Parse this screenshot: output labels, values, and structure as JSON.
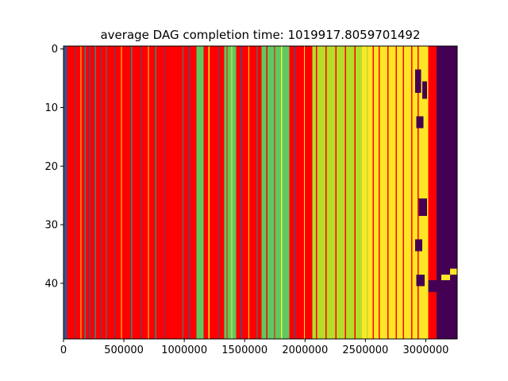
{
  "chart_data": {
    "type": "heatmap",
    "title": "average DAG completion time: 1019917.8059701492",
    "xlabel": "",
    "ylabel": "",
    "xlim": [
      0,
      3260000
    ],
    "ylim": [
      49.5,
      -0.5
    ],
    "rows": 50,
    "x_ticks": [
      {
        "value": 0,
        "label": "0"
      },
      {
        "value": 500000,
        "label": "500000"
      },
      {
        "value": 1000000,
        "label": "1000000"
      },
      {
        "value": 1500000,
        "label": "1500000"
      },
      {
        "value": 2000000,
        "label": "2000000"
      },
      {
        "value": 2500000,
        "label": "2500000"
      },
      {
        "value": 3000000,
        "label": "3000000"
      }
    ],
    "y_ticks": [
      {
        "value": 0,
        "label": "0"
      },
      {
        "value": 10,
        "label": "10"
      },
      {
        "value": 20,
        "label": "20"
      },
      {
        "value": 30,
        "label": "30"
      },
      {
        "value": 40,
        "label": "40"
      }
    ],
    "grid": false,
    "colors": {
      "idle": "#440154",
      "blue": "#3b528b",
      "teal": "#21918c",
      "green": "#5ec962",
      "lime": "#b5de2b",
      "yellow": "#fde725",
      "red": "#ff0000"
    },
    "column_bands": [
      {
        "x0": 0,
        "x1": 30000,
        "color": "blue"
      },
      {
        "x0": 30000,
        "x1": 1100000,
        "color": "red"
      },
      {
        "x0": 1100000,
        "x1": 1160000,
        "color": "green"
      },
      {
        "x0": 1160000,
        "x1": 1330000,
        "color": "red"
      },
      {
        "x0": 1330000,
        "x1": 1430000,
        "color": "green"
      },
      {
        "x0": 1430000,
        "x1": 1640000,
        "color": "red"
      },
      {
        "x0": 1640000,
        "x1": 1870000,
        "color": "green"
      },
      {
        "x0": 1870000,
        "x1": 2060000,
        "color": "red"
      },
      {
        "x0": 2060000,
        "x1": 2520000,
        "color": "lime"
      },
      {
        "x0": 2520000,
        "x1": 3020000,
        "color": "yellow"
      },
      {
        "x0": 3020000,
        "x1": 3090000,
        "color": "red"
      },
      {
        "x0": 3090000,
        "x1": 3260000,
        "color": "idle"
      }
    ],
    "stripes": [
      {
        "x": 95000,
        "w": 8000,
        "color": "blue"
      },
      {
        "x": 140000,
        "w": 6000,
        "color": "yellow"
      },
      {
        "x": 175000,
        "w": 10000,
        "color": "teal"
      },
      {
        "x": 215000,
        "w": 6000,
        "color": "blue"
      },
      {
        "x": 260000,
        "w": 8000,
        "color": "teal"
      },
      {
        "x": 305000,
        "w": 6000,
        "color": "blue"
      },
      {
        "x": 350000,
        "w": 8000,
        "color": "teal"
      },
      {
        "x": 420000,
        "w": 6000,
        "color": "blue"
      },
      {
        "x": 475000,
        "w": 8000,
        "color": "yellow"
      },
      {
        "x": 560000,
        "w": 10000,
        "color": "teal"
      },
      {
        "x": 640000,
        "w": 6000,
        "color": "blue"
      },
      {
        "x": 700000,
        "w": 8000,
        "color": "yellow"
      },
      {
        "x": 760000,
        "w": 10000,
        "color": "teal"
      },
      {
        "x": 830000,
        "w": 8000,
        "color": "blue"
      },
      {
        "x": 985000,
        "w": 8000,
        "color": "teal"
      },
      {
        "x": 1040000,
        "w": 6000,
        "color": "blue"
      },
      {
        "x": 1200000,
        "w": 8000,
        "color": "yellow"
      },
      {
        "x": 1280000,
        "w": 6000,
        "color": "blue"
      },
      {
        "x": 1350000,
        "w": 8000,
        "color": "red"
      },
      {
        "x": 1390000,
        "w": 8000,
        "color": "yellow"
      },
      {
        "x": 1470000,
        "w": 6000,
        "color": "blue"
      },
      {
        "x": 1530000,
        "w": 8000,
        "color": "yellow"
      },
      {
        "x": 1600000,
        "w": 8000,
        "color": "teal"
      },
      {
        "x": 1680000,
        "w": 10000,
        "color": "red"
      },
      {
        "x": 1745000,
        "w": 8000,
        "color": "red"
      },
      {
        "x": 1800000,
        "w": 10000,
        "color": "yellow"
      },
      {
        "x": 1910000,
        "w": 6000,
        "color": "blue"
      },
      {
        "x": 1990000,
        "w": 8000,
        "color": "yellow"
      },
      {
        "x": 2090000,
        "w": 10000,
        "color": "red"
      },
      {
        "x": 2170000,
        "w": 10000,
        "color": "red"
      },
      {
        "x": 2250000,
        "w": 10000,
        "color": "red"
      },
      {
        "x": 2330000,
        "w": 10000,
        "color": "red"
      },
      {
        "x": 2410000,
        "w": 10000,
        "color": "red"
      },
      {
        "x": 2470000,
        "w": 40000,
        "color": "yellow"
      },
      {
        "x": 2560000,
        "w": 10000,
        "color": "red"
      },
      {
        "x": 2610000,
        "w": 10000,
        "color": "red"
      },
      {
        "x": 2680000,
        "w": 10000,
        "color": "red"
      },
      {
        "x": 2750000,
        "w": 10000,
        "color": "red"
      },
      {
        "x": 2810000,
        "w": 10000,
        "color": "red"
      },
      {
        "x": 2880000,
        "w": 10000,
        "color": "red"
      },
      {
        "x": 2930000,
        "w": 10000,
        "color": "red"
      },
      {
        "x": 3060000,
        "w": 8000,
        "color": "red"
      }
    ],
    "idle_blocks": [
      {
        "x0": 2910000,
        "x1": 2960000,
        "y0": 4,
        "y1": 8
      },
      {
        "x0": 2970000,
        "x1": 3010000,
        "y0": 6,
        "y1": 9
      },
      {
        "x0": 2920000,
        "x1": 2980000,
        "y0": 12,
        "y1": 14
      },
      {
        "x0": 2940000,
        "x1": 3010000,
        "y0": 26,
        "y1": 29
      },
      {
        "x0": 2910000,
        "x1": 2970000,
        "y0": 33,
        "y1": 35
      },
      {
        "x0": 2920000,
        "x1": 2990000,
        "y0": 39,
        "y1": 41
      },
      {
        "x0": 3020000,
        "x1": 3090000,
        "y0": 40,
        "y1": 42
      }
    ],
    "highlight_blocks": [
      {
        "x0": 3200000,
        "x1": 3260000,
        "y0": 38,
        "y1": 39,
        "color": "yellow"
      },
      {
        "x0": 3130000,
        "x1": 3200000,
        "y0": 39,
        "y1": 40,
        "color": "yellow"
      }
    ]
  }
}
